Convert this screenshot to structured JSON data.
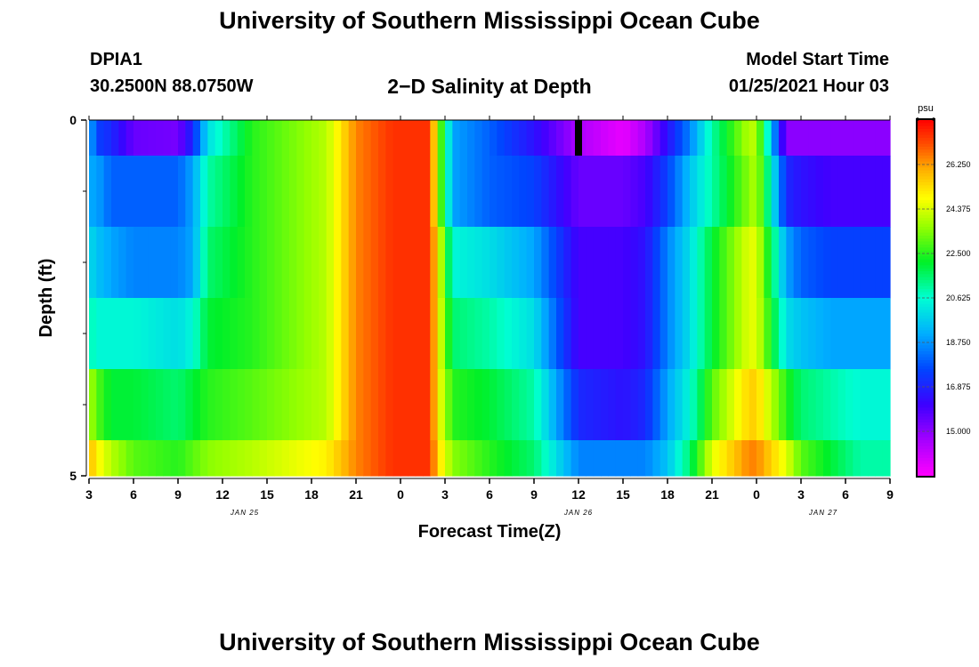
{
  "header": {
    "title": "University of Southern Mississippi Ocean Cube",
    "station_id": "DPIA1",
    "station_coords": "30.2500N 88.0750W",
    "plot_title": "2−D Salinity at Depth",
    "model_start_label": "Model Start Time",
    "model_start_value": "01/25/2021 Hour 03"
  },
  "footer": {
    "title": "University of Southern Mississippi Ocean Cube"
  },
  "chart_data": {
    "type": "heatmap",
    "title": "2-D Salinity at Depth",
    "xlabel": "Forecast Time(Z)",
    "ylabel": "Depth (ft)",
    "x_tick_labels": [
      "3",
      "6",
      "9",
      "12",
      "15",
      "18",
      "21",
      "0",
      "3",
      "6",
      "9",
      "12",
      "15",
      "18",
      "21",
      "0",
      "3",
      "6",
      "9"
    ],
    "x_date_labels": [
      {
        "label": "JAN 25",
        "tick_index": 3.5
      },
      {
        "label": "JAN 26",
        "tick_index": 11
      },
      {
        "label": "JAN 27",
        "tick_index": 16.5
      }
    ],
    "x_range_hours": [
      0,
      54
    ],
    "y_tick_labels": [
      {
        "label": "0",
        "value": 0
      },
      {
        "label": "5",
        "value": 5
      }
    ],
    "y_range": [
      0,
      5
    ],
    "y_minor_ticks": [
      1,
      2,
      3,
      4
    ],
    "depth_rows": [
      0.25,
      1,
      2,
      3,
      4,
      4.75
    ],
    "time_keys": [
      0,
      0.5,
      1.5,
      3,
      6,
      7,
      8,
      11,
      16,
      18,
      20.5,
      23,
      23.5,
      24.5,
      27,
      30,
      33,
      36,
      37.5,
      39,
      40.5,
      42,
      44.5,
      45,
      47,
      48,
      50,
      52,
      54
    ],
    "salinity_psu": [
      [
        19.5,
        17.5,
        17.0,
        15.5,
        15.3,
        17.0,
        20.0,
        22.5,
        24.0,
        26.5,
        27.5,
        27.5,
        24.0,
        19.0,
        18.0,
        16.5,
        14.5,
        13.5,
        14.5,
        16.5,
        18.5,
        21.0,
        24.0,
        24.0,
        15.0,
        15.0,
        15.0,
        15.0,
        15.0
      ],
      [
        19.0,
        19.0,
        18.0,
        18.0,
        18.0,
        19.0,
        21.0,
        22.5,
        24.0,
        26.5,
        27.5,
        27.5,
        24.0,
        19.0,
        18.0,
        17.5,
        15.5,
        15.5,
        16.0,
        17.5,
        19.5,
        21.0,
        23.5,
        24.0,
        17.0,
        16.5,
        16.0,
        16.0,
        16.0
      ],
      [
        20.0,
        19.5,
        19.0,
        18.5,
        18.5,
        19.0,
        21.5,
        22.5,
        24.0,
        26.5,
        27.5,
        27.5,
        25.0,
        20.5,
        20.0,
        19.0,
        16.0,
        16.0,
        16.5,
        18.5,
        20.0,
        22.0,
        24.5,
        24.5,
        19.0,
        18.0,
        17.5,
        17.5,
        17.5
      ],
      [
        21.0,
        20.5,
        20.5,
        20.5,
        20.0,
        20.5,
        22.0,
        22.5,
        24.0,
        26.5,
        27.5,
        27.5,
        25.0,
        21.5,
        21.0,
        20.0,
        16.0,
        16.0,
        16.5,
        18.5,
        20.0,
        22.0,
        24.5,
        24.5,
        20.0,
        19.5,
        19.0,
        19.0,
        19.0
      ],
      [
        24.0,
        23.0,
        22.0,
        22.0,
        21.5,
        22.0,
        22.5,
        23.0,
        24.0,
        26.5,
        27.5,
        27.5,
        25.0,
        22.5,
        22.0,
        21.0,
        17.0,
        16.5,
        17.0,
        19.0,
        20.5,
        23.0,
        25.5,
        25.5,
        22.5,
        21.5,
        21.0,
        20.5,
        20.5
      ],
      [
        26.0,
        25.0,
        24.0,
        23.0,
        22.5,
        23.0,
        23.5,
        24.0,
        25.0,
        26.5,
        27.5,
        27.5,
        25.5,
        23.5,
        22.5,
        21.5,
        18.5,
        18.5,
        18.5,
        19.5,
        21.5,
        24.5,
        26.5,
        26.5,
        24.5,
        23.0,
        22.0,
        21.0,
        21.0
      ]
    ],
    "missing_data": [
      {
        "time_hours": 33,
        "depth_row": 0
      }
    ],
    "colorbar": {
      "unit": "psu",
      "min": 13.125,
      "max": 28.125,
      "ticks": [
        "26.250",
        "24.375",
        "22.500",
        "20.625",
        "18.750",
        "16.875",
        "15.000"
      ],
      "tick_values": [
        26.25,
        24.375,
        22.5,
        20.625,
        18.75,
        16.875,
        15.0
      ]
    }
  }
}
